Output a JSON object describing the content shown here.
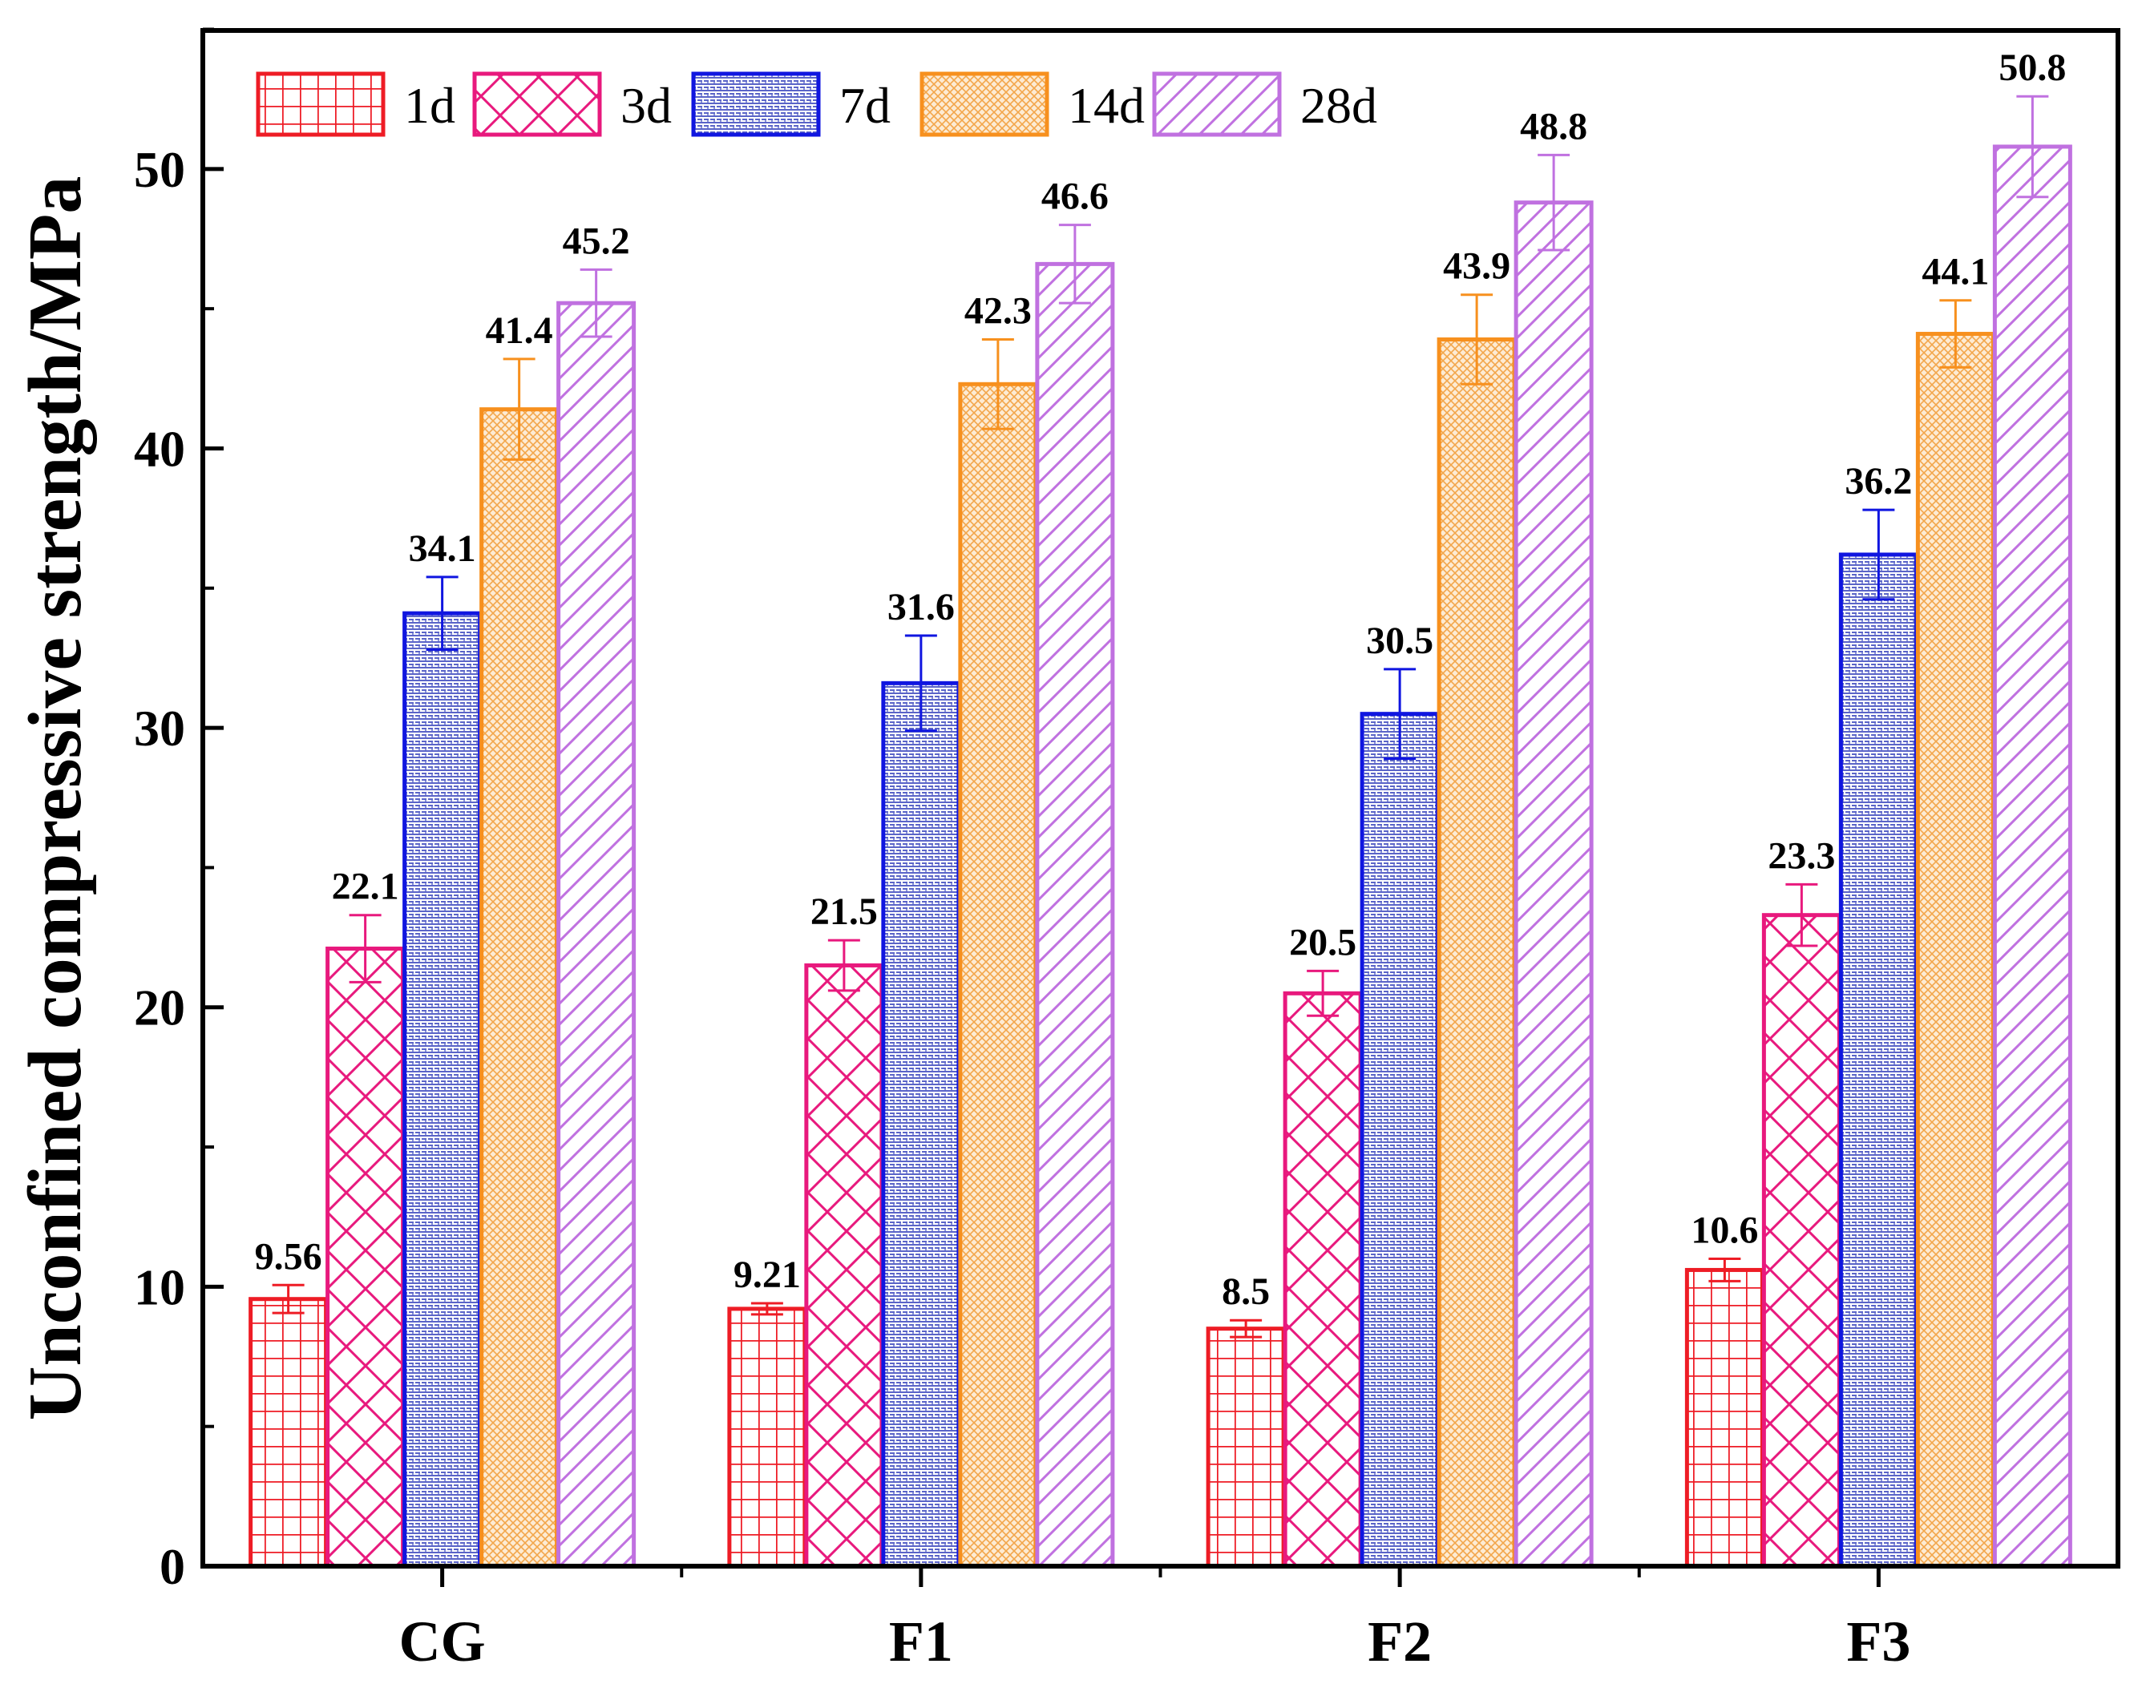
{
  "chart_data": {
    "type": "bar",
    "title": "",
    "xlabel": "",
    "ylabel": "Unconfined compressive strength/MPa",
    "ylim": [
      0,
      55
    ],
    "yticks": [
      0,
      10,
      20,
      30,
      40,
      50
    ],
    "categories": [
      "CG",
      "F1",
      "F2",
      "F3"
    ],
    "legend_position": "top-left",
    "series": [
      {
        "name": "1d",
        "color": "#ee1c25",
        "pattern": "grid",
        "values": [
          9.56,
          9.21,
          8.5,
          10.6
        ],
        "labels": [
          "9.56",
          "9.21",
          "8.5",
          "10.6"
        ],
        "errors": [
          0.5,
          0.2,
          0.3,
          0.4
        ]
      },
      {
        "name": "3d",
        "color": "#e8197d",
        "pattern": "crosshatch",
        "values": [
          22.1,
          21.5,
          20.5,
          23.3
        ],
        "labels": [
          "22.1",
          "21.5",
          "20.5",
          "23.3"
        ],
        "errors": [
          1.2,
          0.9,
          0.8,
          1.1
        ]
      },
      {
        "name": "7d",
        "color": "#1016e0",
        "pattern": "dots",
        "values": [
          34.1,
          31.6,
          30.5,
          36.2
        ],
        "labels": [
          "34.1",
          "31.6",
          "30.5",
          "36.2"
        ],
        "errors": [
          1.3,
          1.7,
          1.6,
          1.6
        ]
      },
      {
        "name": "14d",
        "color": "#f7901e",
        "pattern": "mesh",
        "values": [
          41.4,
          42.3,
          43.9,
          44.1
        ],
        "labels": [
          "41.4",
          "42.3",
          "43.9",
          "44.1"
        ],
        "errors": [
          1.8,
          1.6,
          1.6,
          1.2
        ]
      },
      {
        "name": "28d",
        "color": "#c071e0",
        "pattern": "diagonal",
        "values": [
          45.2,
          46.6,
          48.8,
          50.8
        ],
        "labels": [
          "45.2",
          "46.6",
          "48.8",
          "50.8"
        ],
        "errors": [
          1.2,
          1.4,
          1.7,
          1.8
        ]
      }
    ]
  }
}
